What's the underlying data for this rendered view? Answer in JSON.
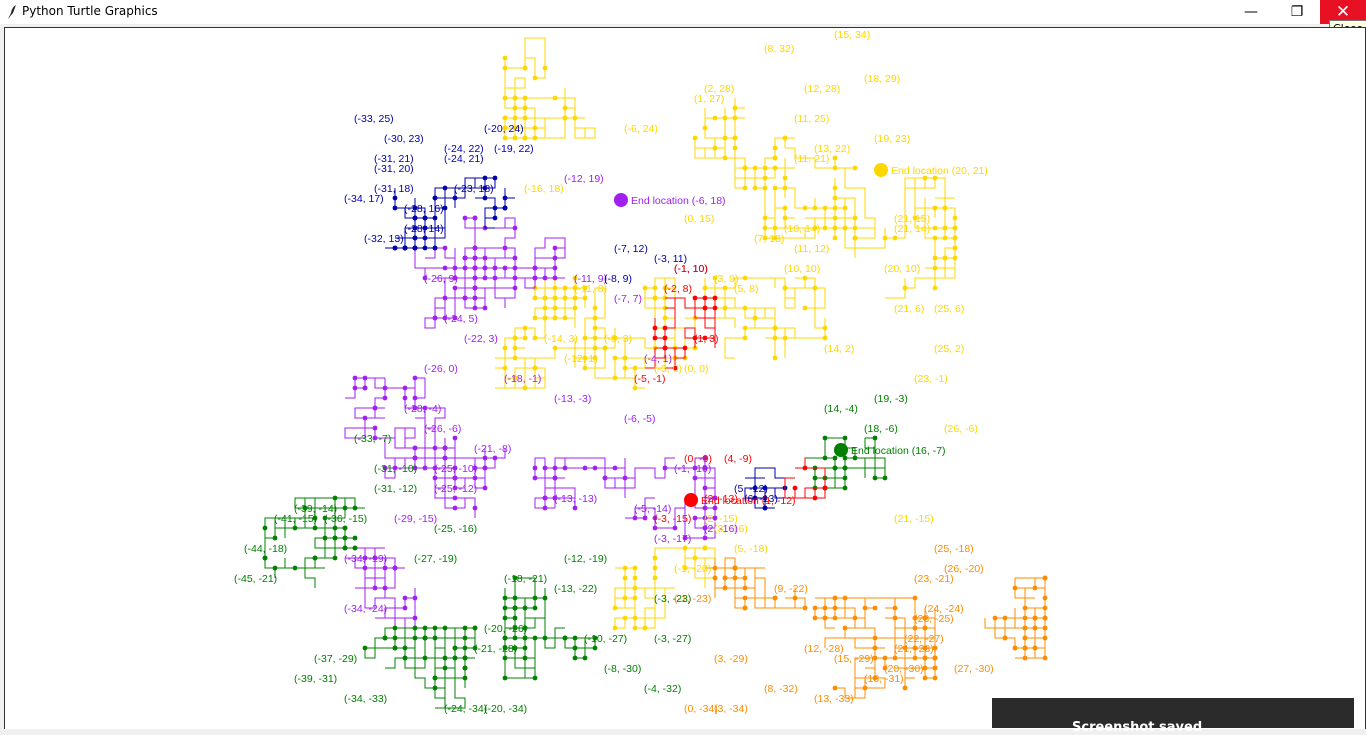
{
  "window": {
    "title": "Python Turtle Graphics",
    "minimize_glyph": "—",
    "maximize_glyph": "❐",
    "close_glyph": "✕",
    "close_tooltip": "Close"
  },
  "colors": {
    "yellow": "#ffd700",
    "orange": "#ff8c00",
    "purple": "#a020f0",
    "blue": "#0000aa",
    "green": "#008000",
    "lime": "#00cc00",
    "red": "#ff0000",
    "magenta": "#ee82ee"
  },
  "end_markers": [
    {
      "text": "End location (-6, 18)",
      "color": "purple"
    },
    {
      "text": "End location (20, 21)",
      "color": "yellow"
    },
    {
      "text": "End location (16, -7)",
      "color": "green"
    },
    {
      "text": "End location (1, -12)",
      "color": "red"
    }
  ],
  "labels": {
    "yellow": [
      "(15, 34)",
      "(8, 32)",
      "(18, 29)",
      "(12, 28)",
      "(11, 25)",
      "(19, 23)",
      "(13, 22)",
      "(11, 21)",
      "(21, 15)",
      "(21, 14)",
      "(10, 14)",
      "(20, 10)",
      "(25, 6)",
      "(21, 6)",
      "(25, 2)",
      "(23, -1)",
      "(26, -6)",
      "(21, -15)",
      "(-16, 18)",
      "(-11, 8)",
      "(-14, 3)",
      "(-8, 3)",
      "(-12, 1)",
      "(0, 15)",
      "(7, 13)",
      "(3, 9)",
      "(5, 8)",
      "(1, 27)",
      "(-6, 24)",
      "(2, 28)",
      "(11, 12)",
      "(10, 10)",
      "(14, 2)",
      "(-3, 0)",
      "(0, 0)",
      "(2, -15)",
      "(3, -16)",
      "(-1, -20)",
      "(5, -18)"
    ],
    "orange": [
      "(25, -18)",
      "(26, -20)",
      "(23, -21)",
      "(23, -25)",
      "(22, -27)",
      "(21, -28)",
      "(20, -30)",
      "(15, -29)",
      "(8, -32)",
      "(3, -34)",
      "(0, -34)",
      "(-1, -23)",
      "(3, -29)",
      "(9, -22)",
      "(12, -28)",
      "(13, -33)",
      "(18, -31)",
      "(27, -30)",
      "(24, -24)"
    ],
    "purple": [
      "(-12, 19)",
      "(-26, 9)",
      "(-24, 5)",
      "(-22, 3)",
      "(-26, 0)",
      "(-28, -4)",
      "(-26, -6)",
      "(-25, -12)",
      "(-29, -15)",
      "(-34, -19)",
      "(-34, -24)",
      "(-18, -1)",
      "(-11, 9)",
      "(-7, 7)",
      "(-4, 1)",
      "(-6, -5)",
      "(-13, -3)",
      "(-21, -8)",
      "(-5, -14)",
      "(-3, -17)",
      "(-13, -13)",
      "(-1, -10)",
      "(2, -16)",
      "(-25, -10)"
    ],
    "blue": [
      "(-33, 25)",
      "(-30, 23)",
      "(-31, 21)",
      "(-31, 20)",
      "(-31, 18)",
      "(-34, 17)",
      "(-32, 13)",
      "(-28, 14)",
      "(-28, 16)",
      "(-24, 22)",
      "(-20, 24)",
      "(-19, 22)",
      "(-24, 21)",
      "(-23, 18)",
      "(-7, 12)",
      "(-3, 11)",
      "(-1, 10)",
      "(-8, 9)",
      "(5, -12)",
      "(6, -13)"
    ],
    "green": [
      "(-33, -7)",
      "(-31, -10)",
      "(-31, -12)",
      "(-39, -14)",
      "(-41, -15)",
      "(-44, -18)",
      "(-45, -21)",
      "(-36, -15)",
      "(-27, -19)",
      "(-25, -16)",
      "(-18, -21)",
      "(-20, -26)",
      "(-21, -28)",
      "(-39, -31)",
      "(-37, -29)",
      "(-34, -33)",
      "(-24, -34)",
      "(-20, -34)",
      "(-12, -19)",
      "(-13, -22)",
      "(-10, -27)",
      "(-8, -30)",
      "(-3, -27)",
      "(-4, -32)",
      "(-3, -23)",
      "(18, -6)",
      "(14, -4)",
      "(19, -3)"
    ],
    "red": [
      "(-1, 10)",
      "(-2, 8)",
      "(1, 3)",
      "(-5, -1)",
      "(0, -9)",
      "(-3, -15)",
      "(2, -13)",
      "(4, -9)"
    ]
  },
  "toast": {
    "text": "Screenshot saved"
  }
}
